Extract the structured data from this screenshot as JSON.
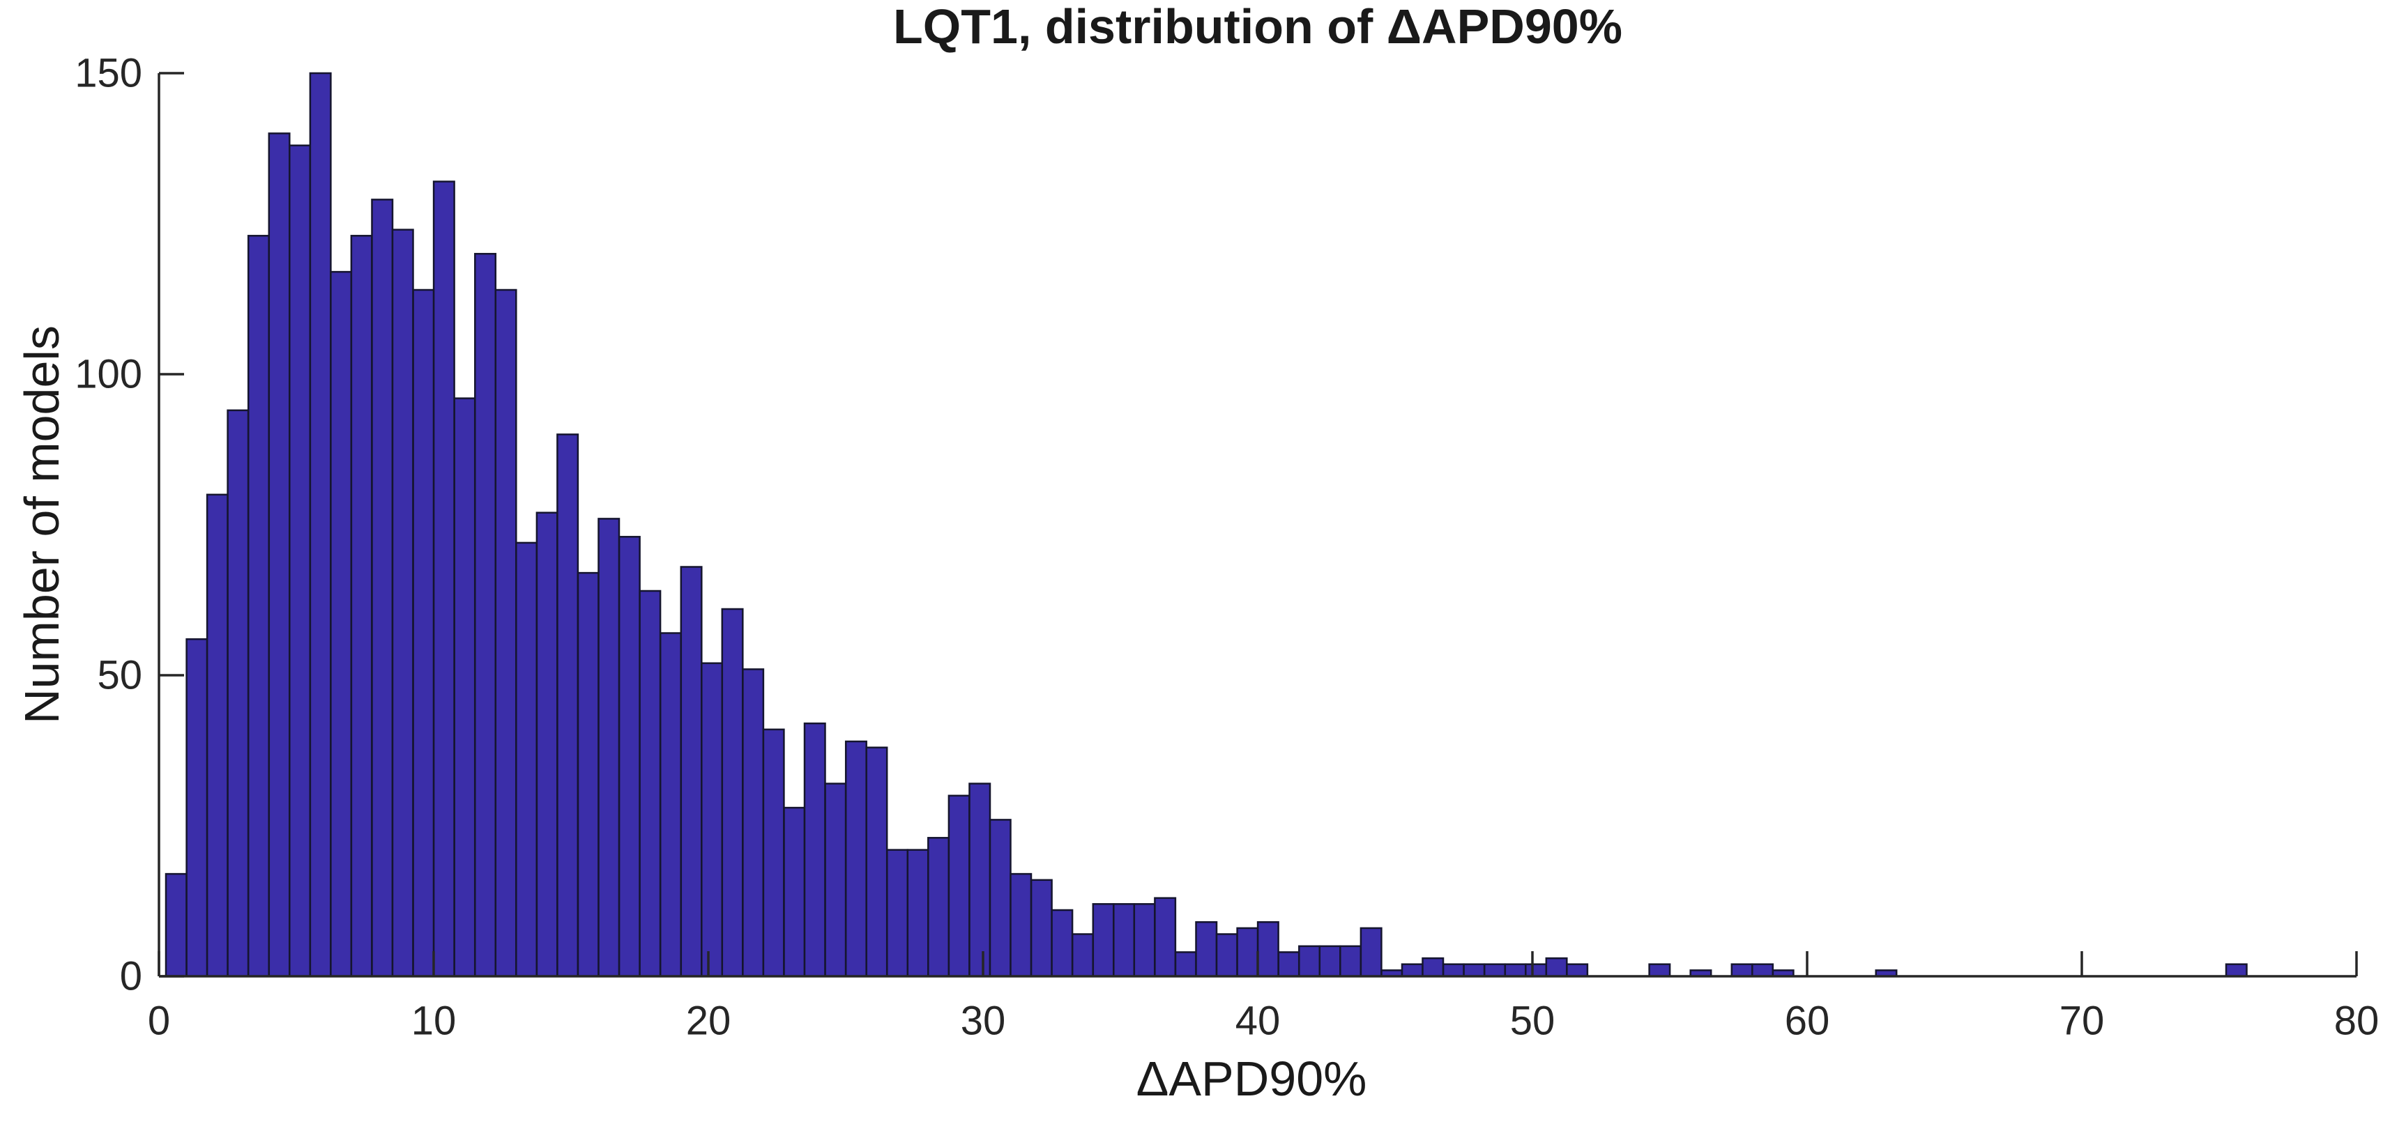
{
  "chart_data": {
    "type": "bar",
    "subtype": "histogram",
    "title": "LQT1, distribution of ΔAPD90%",
    "xlabel": "ΔAPD90%",
    "ylabel": "Number of models",
    "xlim": [
      0,
      80
    ],
    "ylim": [
      0,
      150
    ],
    "x_ticks": [
      0,
      10,
      20,
      30,
      40,
      50,
      60,
      70,
      80
    ],
    "y_ticks": [
      0,
      50,
      100,
      150
    ],
    "grid": false,
    "legend_position": "none",
    "bin_start": 0,
    "bin_width": 0.75,
    "values": [
      17,
      56,
      80,
      94,
      123,
      140,
      138,
      150,
      117,
      123,
      129,
      124,
      114,
      132,
      96,
      120,
      114,
      72,
      77,
      90,
      67,
      76,
      73,
      64,
      57,
      68,
      52,
      61,
      51,
      41,
      28,
      42,
      32,
      39,
      38,
      21,
      21,
      23,
      30,
      32,
      26,
      17,
      16,
      11,
      7,
      12,
      12,
      12,
      13,
      4,
      9,
      7,
      8,
      9,
      4,
      5,
      5,
      5,
      8,
      1,
      2,
      3,
      2,
      2,
      2,
      2,
      2,
      3,
      2,
      0,
      0,
      0,
      2,
      0,
      1,
      0,
      2,
      2,
      1,
      0,
      0,
      0,
      0,
      1,
      0,
      0,
      0,
      0,
      0,
      0,
      0,
      0,
      0,
      0,
      0,
      0,
      0,
      0,
      0,
      0,
      2,
      0,
      0,
      0,
      0,
      0,
      0
    ],
    "bar_color": "#3B2EA9",
    "bar_edge_color": "#15152E",
    "axis_color": "#262626",
    "text_color": "#1A1A1A",
    "background_color": "#FFFFFF"
  }
}
